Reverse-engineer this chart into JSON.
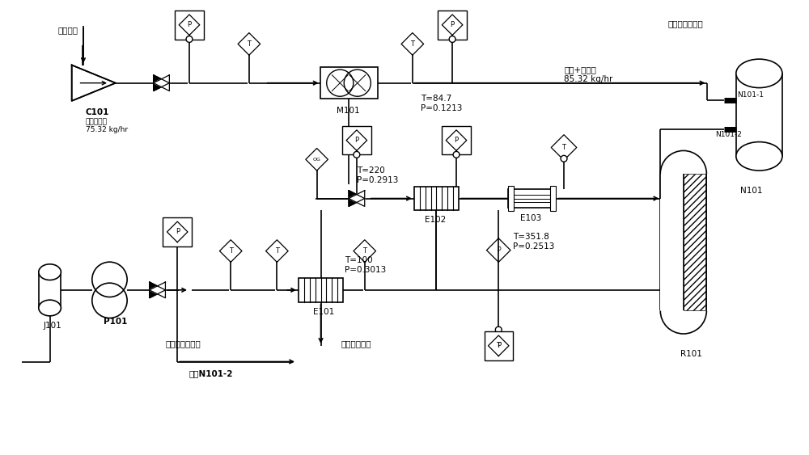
{
  "bg_color": "#ffffff",
  "line_color": "#000000",
  "labels": {
    "air_inlet": "空气进口",
    "C101_line1": "C101",
    "C101_line2": "空气增压器",
    "C101_line3": "75.32 kg/hr",
    "M101": "M101",
    "N101": "N101",
    "N101_1": "N101-1",
    "N101_2": "N101-2",
    "N101_label": "内燃机空气入口",
    "air_label1": "空气+引燃剂",
    "air_label2": "85.32 kg/hr",
    "T84": "T=84.7\nP=0.1213",
    "T220": "T=220\nP=0.2913",
    "T100": "T=100\nP=0.3013",
    "T351": "T=351.8\nP=0.2513",
    "E101": "E101",
    "E102": "E102",
    "E103": "E103",
    "R101": "R101",
    "J101": "J101",
    "P101": "P101",
    "coolwater_in": "内燃机冷却水",
    "coolwater_out": "回内燃机冷却水",
    "go_N101": "去往N101-2"
  }
}
